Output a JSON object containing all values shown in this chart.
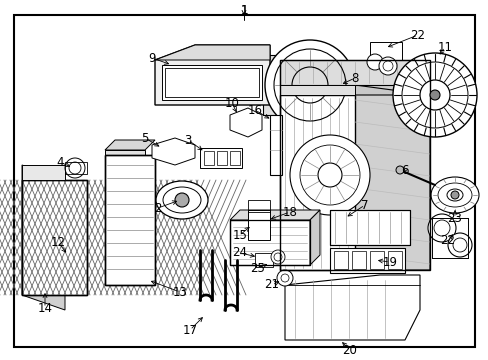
{
  "bg_color": "#ffffff",
  "border_color": "#000000",
  "text_color": "#000000",
  "fig_width": 4.89,
  "fig_height": 3.6,
  "dpi": 100,
  "lw_main": 1.0,
  "lw_thin": 0.5,
  "lw_med": 0.7,
  "font_size": 8.5
}
